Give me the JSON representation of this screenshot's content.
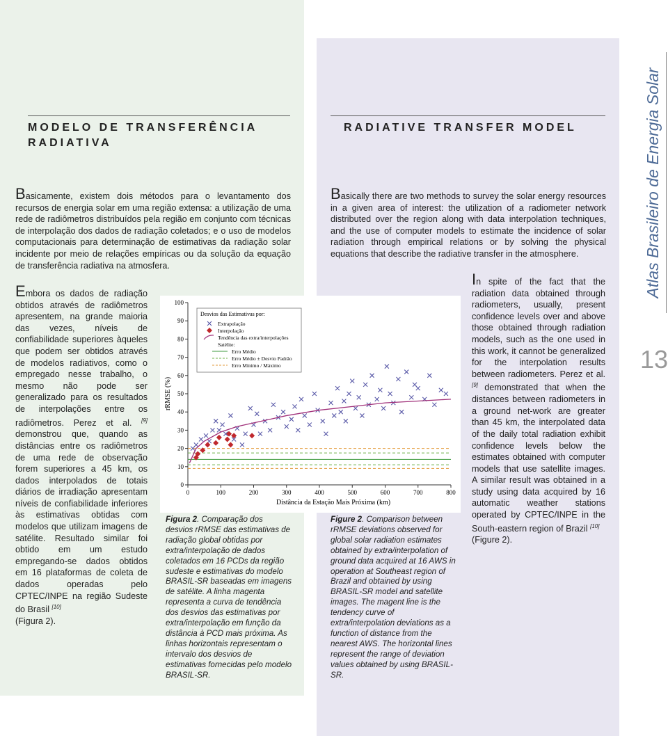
{
  "side_title": "Atlas Brasileiro de Energia Solar",
  "page_number": "13",
  "pt": {
    "heading": "MODELO DE TRANSFERÊNCIA RADIATIVA",
    "p1": {
      "drop_cap": "B",
      "text": "asicamente, existem dois métodos para o levantamento dos recursos de energia solar em uma região extensa: a utilização de uma rede de radiômetros distribuídos pela região em conjunto com técnicas de interpolação dos dados de radiação coletados; e o uso de modelos computacionais para determinação de estimativas da radiação solar incidente por meio de relações empíricas ou da solução da equação de transferência radiativa na atmosfera."
    },
    "p2": {
      "drop_cap": "E",
      "text_1": "mbora os dados de radiação obtidos através de radiômetros apresentem, na grande maioria das vezes, níveis de confiabilidade superiores àqueles que podem ser obtidos através de modelos radiativos, como o empregado nesse trabalho, o mesmo não pode ser generalizado para os resultados de interpolações entre os radiômetros. Perez et al.",
      "ref_1": "[9]",
      "text_2": "demonstrou que, quando as distâncias entre os radiômetros de uma rede de observação forem superiores a 45 km, os dados interpolados de totais diários de irradiação apresentam níveis de confiabilidade inferiores às estimativas obtidas com modelos que utilizam imagens de satélite. Resultado similar foi obtido em um estudo empregando-se dados obtidos em 16 plataformas de coleta de dados operadas pelo CPTEC/INPE na região Sudeste do Brasil",
      "ref_2": "[10]",
      "text_3": "(Figura 2)."
    },
    "caption": {
      "label": "Figura 2",
      "text": ". Comparação dos desvios rRMSE das estimativas de radiação global obtidas por extra/interpolação de dados coletados em 16 PCDs da região sudeste e estimativas do modelo BRASIL-SR baseadas em imagens de satélite. A linha magenta representa a curva de tendência dos desvios das estimativas por extra/interpolação em função da distância à PCD mais próxima. As linhas horizontais representam o intervalo dos desvios de estimativas fornecidas pelo modelo BRASIL-SR."
    }
  },
  "en": {
    "heading": "RADIATIVE TRANSFER MODEL",
    "p1": {
      "drop_cap": "B",
      "text": "asically there are two methods to survey the solar energy resources in a given area of interest: the utilization of a radiometer network distributed over the region along with data interpolation techniques, and the use of computer models to estimate the incidence of solar radiation through empirical relations or by solving the physical equations that describe the radiative transfer in the atmosphere."
    },
    "p2": {
      "drop_cap": "I",
      "text_1": "n spite of the fact that the radiation data obtained through radiometers, usually, present confidence levels over and above those obtained through radiation models, such as the one used in this work, it cannot be generalized for the interpolation results between radiometers. Perez et al.",
      "ref_1": "[9]",
      "text_2": "demonstrated that when the distances between radiometers in a ground net-work are greater than 45 km, the interpolated data of the daily total radiation exhibit confidence levels below the estimates obtained with computer models that use satellite images. A similar result was obtained in a study using data acquired by 16 automatic weather stations operated by CPTEC/INPE in the South-eastern region of Brazil",
      "ref_2": "[10]",
      "text_3": "(Figure 2)."
    },
    "caption": {
      "label": "Figure 2",
      "text": ". Comparison between rRMSE deviations observed for global solar radiation estimates obtained by extra/interpolation of ground data acquired at 16 AWS in operation at Southeast region of Brazil and obtained by using BRASIL-SR model and satellite images. The magent line is the tendency curve of extra/interpolation deviations as a function of distance from the nearest AWS. The horizontal lines represent the range of deviation values obtained by using BRASIL-SR."
    }
  },
  "chart_data": {
    "type": "scatter",
    "xlabel": "Distância da Estação Mais Próxima (km)",
    "ylabel": "rRMSE (%)",
    "xlim": [
      0,
      800
    ],
    "ylim": [
      0,
      100
    ],
    "xticks": [
      0,
      100,
      200,
      300,
      400,
      500,
      600,
      700,
      800
    ],
    "yticks": [
      0,
      10,
      20,
      30,
      40,
      50,
      60,
      70,
      80,
      90,
      100
    ],
    "legend_title": "Desvios das Estimativas por:",
    "legend_subtitle": "Satélite:",
    "series": [
      {
        "name": "Extrapolação",
        "color": "#5a5aa8",
        "marker": "x",
        "x": [
          15,
          25,
          40,
          55,
          65,
          75,
          85,
          95,
          105,
          115,
          130,
          140,
          150,
          165,
          175,
          190,
          200,
          210,
          220,
          235,
          250,
          260,
          275,
          290,
          300,
          315,
          325,
          335,
          345,
          355,
          370,
          385,
          395,
          410,
          420,
          435,
          445,
          455,
          465,
          475,
          480,
          490,
          500,
          510,
          520,
          530,
          540,
          550,
          560,
          575,
          585,
          595,
          605,
          615,
          625,
          640,
          650,
          665,
          680,
          690,
          700,
          720,
          735,
          750,
          770,
          785
        ],
        "values": [
          20,
          22,
          25,
          27,
          24,
          30,
          35,
          30,
          33,
          28,
          38,
          25,
          31,
          22,
          28,
          42,
          33,
          39,
          28,
          35,
          30,
          44,
          37,
          40,
          32,
          36,
          43,
          30,
          47,
          38,
          33,
          50,
          41,
          35,
          28,
          45,
          38,
          53,
          40,
          46,
          35,
          50,
          57,
          42,
          48,
          38,
          55,
          44,
          60,
          47,
          52,
          42,
          65,
          50,
          45,
          58,
          40,
          62,
          48,
          55,
          53,
          47,
          60,
          44,
          52,
          50
        ]
      },
      {
        "name": "Interpolação",
        "color": "#c0282d",
        "marker": "diamond",
        "x": [
          25,
          30,
          45,
          60,
          85,
          95,
          120,
          125,
          130,
          140,
          195
        ],
        "values": [
          15,
          17,
          19,
          22,
          23,
          26,
          25,
          28,
          22,
          27,
          27
        ]
      },
      {
        "name": "Tendência das extra/interpolações",
        "color": "#a0307a",
        "marker": "line",
        "x": [
          5,
          25,
          50,
          100,
          150,
          200,
          300,
          400,
          500,
          600,
          700,
          800
        ],
        "values": [
          12,
          20,
          24,
          29,
          32,
          34,
          38,
          41,
          43,
          45,
          46,
          47
        ]
      }
    ],
    "hlines": [
      {
        "name": "Erro Médio",
        "color": "#3c9a3c",
        "style": "solid",
        "values": [
          14
        ]
      },
      {
        "name": "Erro Médio ± Desvio Padrão",
        "color": "#6fb04a",
        "style": "dashed",
        "values": [
          11,
          17.5
        ]
      },
      {
        "name": "Erro Mínimo / Máximo",
        "color": "#e39a3a",
        "style": "dashed",
        "values": [
          9,
          20
        ]
      }
    ]
  }
}
